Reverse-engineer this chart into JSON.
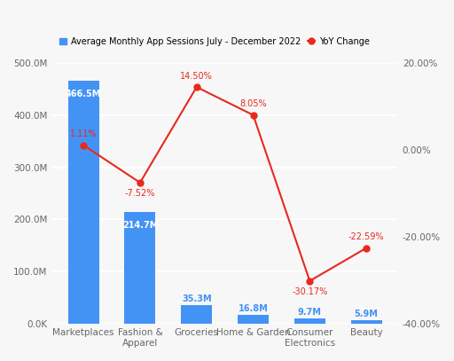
{
  "categories": [
    "Marketplaces",
    "Fashion &\nApparel",
    "Groceries",
    "Home & Garden",
    "Consumer\nElectronics",
    "Beauty"
  ],
  "bar_values": [
    466.5,
    214.7,
    35.3,
    16.8,
    9.7,
    5.9
  ],
  "bar_labels": [
    "466.5M",
    "214.7M",
    "35.3M",
    "16.8M",
    "9.7M",
    "5.9M"
  ],
  "yoy_values": [
    1.11,
    -7.52,
    14.5,
    8.05,
    -30.17,
    -22.59
  ],
  "yoy_labels": [
    "1.11%",
    "-7.52%",
    "14.50%",
    "8.05%",
    "-30.17%",
    "-22.59%"
  ],
  "bar_color": "#4393f5",
  "line_color": "#e8291c",
  "dot_color": "#e8291c",
  "background_color": "#f7f7f7",
  "legend_label_bar": "Average Monthly App Sessions July - December 2022",
  "legend_label_line": "YoY Change",
  "ylim_left": [
    0,
    500
  ],
  "ylim_right": [
    -40,
    20
  ],
  "yticks_left": [
    0,
    100,
    200,
    300,
    400,
    500
  ],
  "ytick_labels_left": [
    "0.0K",
    "100.0M",
    "200.0M",
    "300.0M",
    "400.0M",
    "500.0M"
  ],
  "yticks_right": [
    -40,
    -20,
    0,
    20
  ],
  "ytick_labels_right": [
    "-40.00%",
    "-20.00%",
    "0.00%",
    "20.00%"
  ],
  "bar_label_threshold": 50,
  "tick_fontsize": 7.5,
  "bar_label_fontsize": 7,
  "yoy_label_fontsize": 7,
  "legend_fontsize": 7
}
